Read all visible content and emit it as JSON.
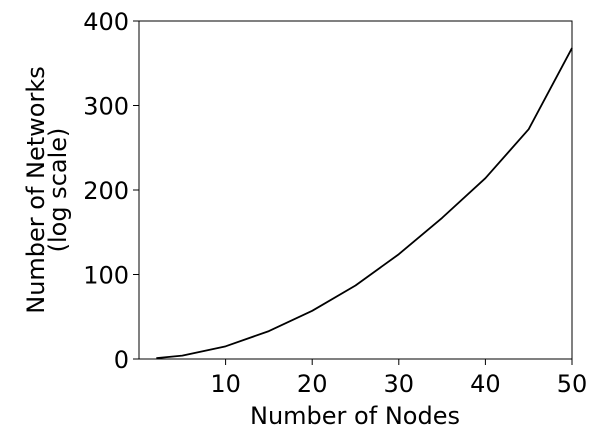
{
  "chart_data": {
    "type": "line",
    "title": "",
    "xlabel": "Number of Nodes",
    "ylabel_line1": "Number of Networks",
    "ylabel_line2": "(log scale)",
    "xlim": [
      0,
      50
    ],
    "ylim": [
      0,
      400
    ],
    "x_ticks": [
      10,
      20,
      30,
      40,
      50
    ],
    "y_ticks": [
      0,
      100,
      200,
      300,
      400
    ],
    "grid": false,
    "series": [
      {
        "color": "#000000",
        "x": [
          2,
          5,
          10,
          15,
          20,
          25,
          30,
          35,
          40,
          45,
          50
        ],
        "y": [
          1,
          4,
          15,
          33,
          57,
          87,
          124,
          167,
          214,
          272,
          368
        ]
      }
    ]
  }
}
